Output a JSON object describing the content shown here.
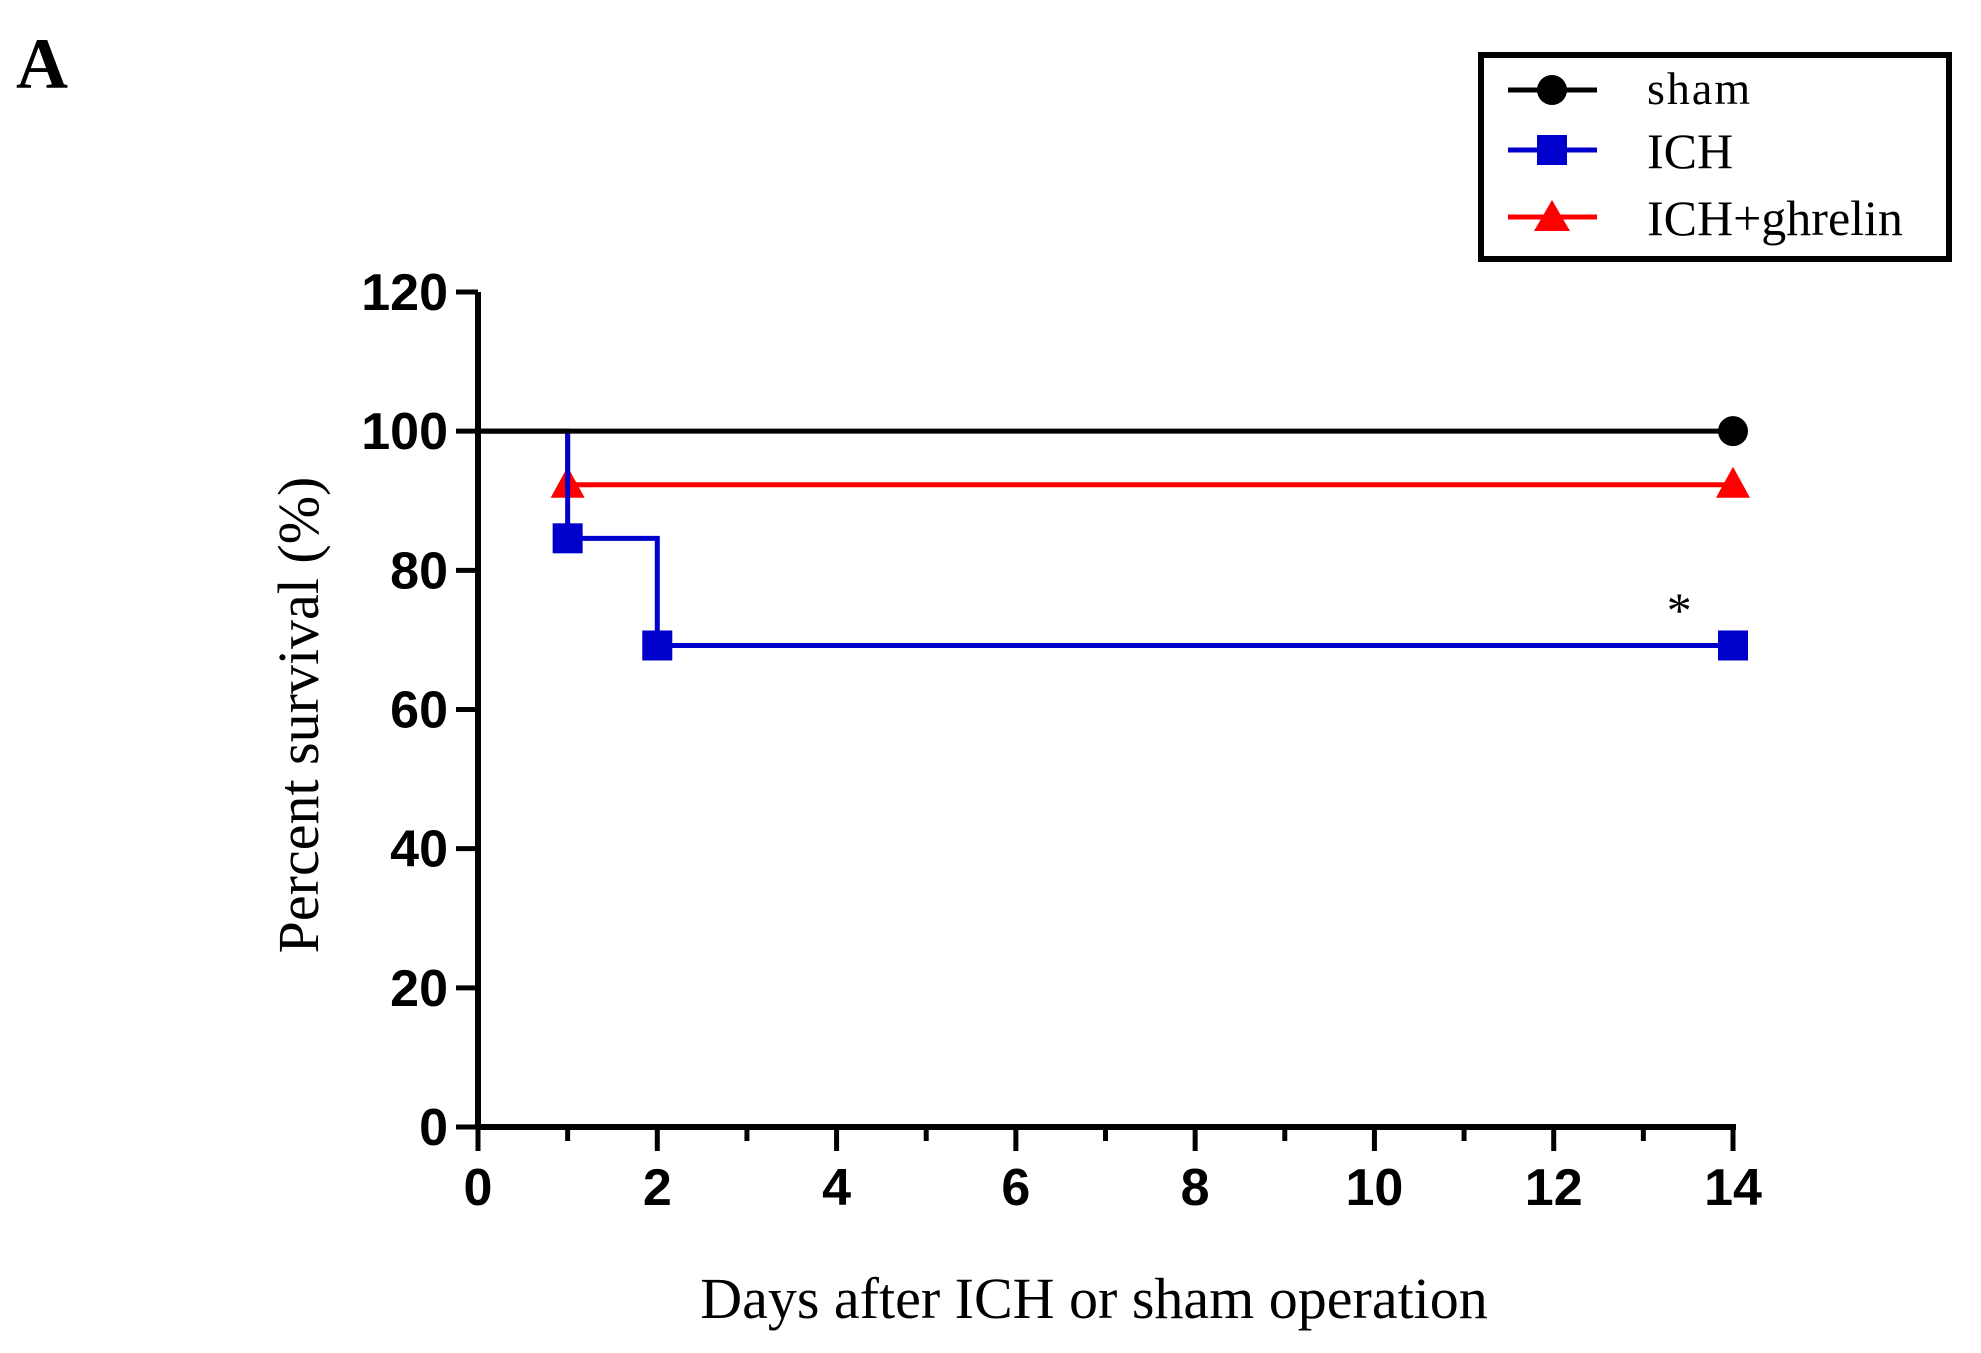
{
  "panel_label": "A",
  "chart_data": {
    "type": "line",
    "subtype": "kaplan-meier step",
    "title": "",
    "xlabel": "Days after ICH or sham operation",
    "ylabel": "Percent survival (%)",
    "xlim": [
      0,
      14
    ],
    "ylim": [
      0,
      120
    ],
    "xticks": [
      0,
      2,
      4,
      6,
      8,
      10,
      12,
      14
    ],
    "xtick_labels": [
      "0",
      "2",
      "4",
      "6",
      "8",
      "10",
      "12",
      "14"
    ],
    "yticks": [
      0,
      20,
      40,
      60,
      80,
      100,
      120
    ],
    "ytick_labels": [
      "0",
      "20",
      "40",
      "60",
      "80",
      "100",
      "120"
    ],
    "grid": false,
    "legend_position": "top-right",
    "series": [
      {
        "name": "sham",
        "color": "#000000",
        "marker": "circle",
        "steps": [
          [
            0,
            100
          ],
          [
            14,
            100
          ]
        ],
        "markers": [
          [
            14,
            100
          ]
        ]
      },
      {
        "name": "ICH",
        "color": "#0000cc",
        "marker": "square",
        "steps": [
          [
            0,
            100
          ],
          [
            1,
            84.6
          ],
          [
            2,
            69.2
          ],
          [
            14,
            69.2
          ]
        ],
        "markers": [
          [
            1,
            84.6
          ],
          [
            2,
            69.2
          ],
          [
            14,
            69.2
          ]
        ]
      },
      {
        "name": "ICH+ghrelin",
        "color": "#ff0000",
        "marker": "triangle",
        "steps": [
          [
            0,
            100
          ],
          [
            1,
            92.3
          ],
          [
            14,
            92.3
          ]
        ],
        "markers": [
          [
            1,
            92.3
          ],
          [
            14,
            92.3
          ]
        ]
      }
    ],
    "annotations": [
      {
        "text": "*",
        "x": 13.4,
        "y": 75
      }
    ]
  }
}
